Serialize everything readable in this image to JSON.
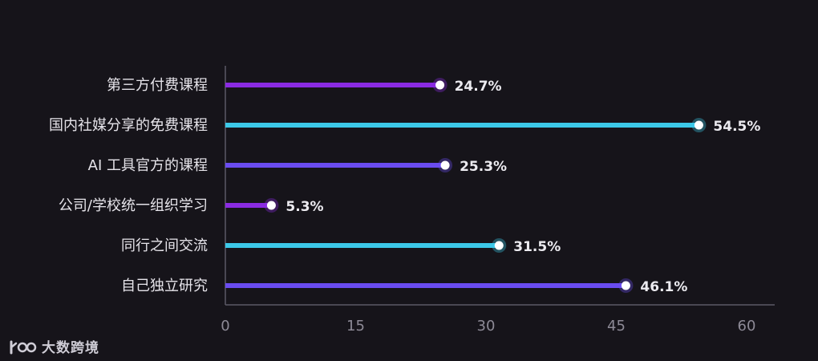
{
  "chart_data": {
    "type": "bar",
    "orientation": "horizontal",
    "style": "lollipop",
    "categories": [
      "第三方付费课程",
      "国内社媒分享的免费课程",
      "AI 工具官方的课程",
      "公司/学校统一组织学习",
      "同行之间交流",
      "自己独立研究"
    ],
    "values": [
      24.7,
      54.5,
      25.3,
      5.3,
      31.5,
      46.1
    ],
    "value_labels": [
      "24.7%",
      "54.5%",
      "25.3%",
      "5.3%",
      "31.5%",
      "46.1%"
    ],
    "bar_colors": [
      "#8a2be2",
      "#3cc8e8",
      "#6a4cf0",
      "#8a2be2",
      "#3cc8e8",
      "#6a4cf0"
    ],
    "xlim": [
      0,
      60
    ],
    "xticks": [
      0,
      15,
      30,
      45,
      60
    ],
    "xtick_labels": [
      "0",
      "15",
      "30",
      "45",
      "60"
    ],
    "grid": false,
    "legend": "none"
  },
  "watermark": {
    "text": "大数跨境"
  },
  "colors": {
    "background": "#16141a",
    "axis": "#5c5966",
    "marker": "#ffffff"
  }
}
